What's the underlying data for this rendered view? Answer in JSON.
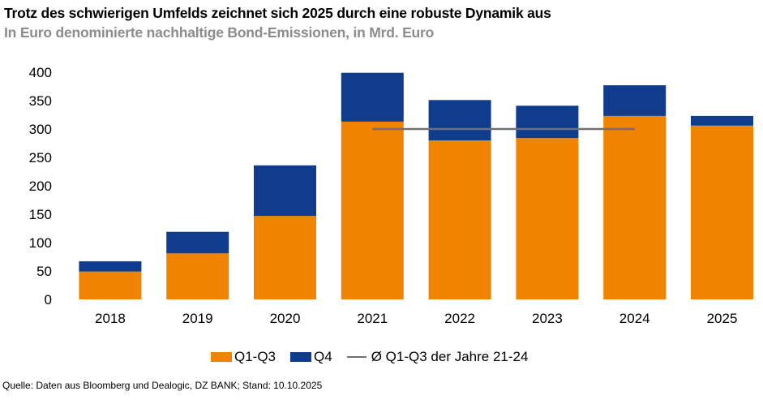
{
  "title": "Trotz des schwierigen Umfelds zeichnet sich 2025 durch eine robuste Dynamik aus",
  "subtitle": "In Euro denominierte nachhaltige Bond-Emissionen, in Mrd. Euro",
  "source": "Quelle: Daten aus Bloomberg und Dealogic, DZ BANK; Stand: 10.10.2025",
  "colors": {
    "q1q3": "#f08300",
    "q4": "#0f3c8c",
    "avg_line": "#707070"
  },
  "chart_data": {
    "type": "bar",
    "stacked": true,
    "title": "Trotz des schwierigen Umfelds zeichnet sich 2025 durch eine robuste Dynamik aus",
    "subtitle": "In Euro denominierte nachhaltige Bond-Emissionen, in Mrd. Euro",
    "xlabel": "",
    "ylabel": "",
    "ylim": [
      0,
      400
    ],
    "yticks": [
      0,
      50,
      100,
      150,
      200,
      250,
      300,
      350,
      400
    ],
    "grid": false,
    "legend_position": "bottom-center",
    "categories": [
      "2018",
      "2019",
      "2020",
      "2021",
      "2022",
      "2023",
      "2024",
      "2025"
    ],
    "series": [
      {
        "name": "Q1-Q3",
        "type": "bar",
        "color": "#f08300",
        "values": [
          49,
          81,
          147,
          313,
          280,
          284,
          323,
          306
        ]
      },
      {
        "name": "Q4",
        "type": "bar",
        "color": "#0f3c8c",
        "values": [
          18,
          38,
          89,
          86,
          71,
          57,
          54,
          17
        ]
      },
      {
        "name": "Ø Q1-Q3 der Jahre 21-24",
        "type": "line",
        "color": "#707070",
        "value": 300,
        "x_from": "2021",
        "x_to": "2024"
      }
    ]
  }
}
